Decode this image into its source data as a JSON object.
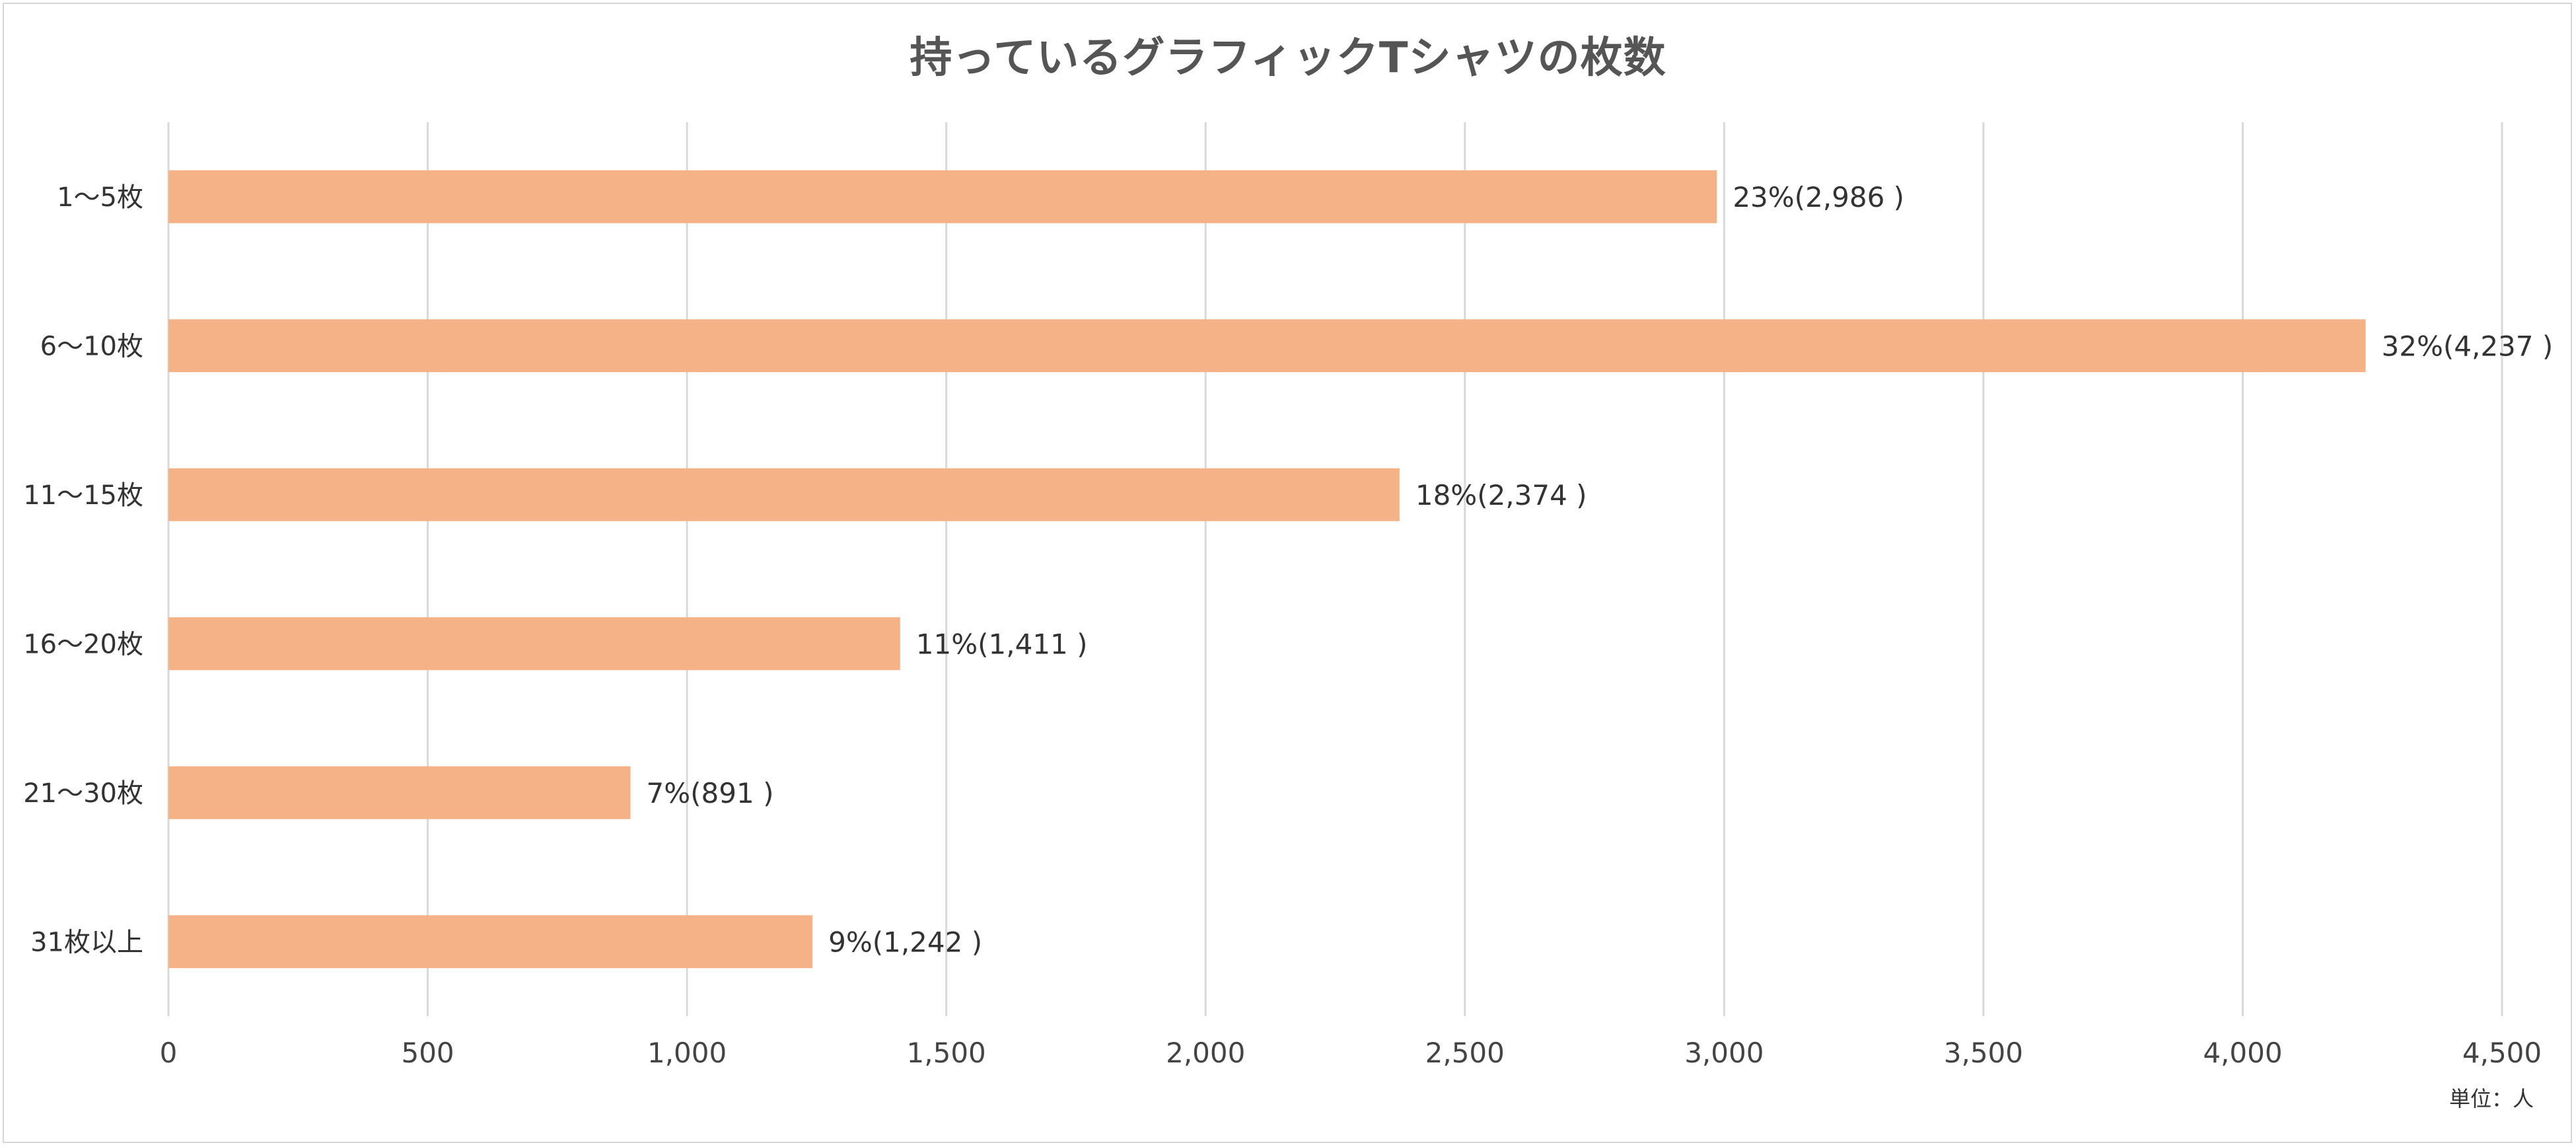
{
  "title": "持っているグラフィックTシャツの枚数",
  "unit_label": "単位：人",
  "colors": {
    "bar": "#F4B286",
    "grid": "#d9d9d9",
    "text": "#333333",
    "axis_text": "#444444"
  },
  "chart_data": {
    "type": "bar",
    "orientation": "horizontal",
    "title": "持っているグラフィックTシャツの枚数",
    "xlabel": "",
    "ylabel": "",
    "categories": [
      "1〜5枚",
      "6〜10枚",
      "11〜15枚",
      "16〜20枚",
      "21〜30枚",
      "31枚以上"
    ],
    "values": [
      2986,
      4237,
      2374,
      1411,
      891,
      1242
    ],
    "data_labels": [
      "23%(2,986 )",
      "32%(4,237 )",
      "18%(2,374 )",
      "11%(1,411 )",
      "7%(891 )",
      "9%(1,242 )"
    ],
    "xlim": [
      0,
      4500
    ],
    "xticks": [
      0,
      500,
      1000,
      1500,
      2000,
      2500,
      3000,
      3500,
      4000,
      4500
    ],
    "xtick_labels": [
      "0",
      "500",
      "1,000",
      "1,500",
      "2,000",
      "2,500",
      "3,000",
      "3,500",
      "4,000",
      "4,500"
    ],
    "grid": true,
    "legend": "none"
  }
}
